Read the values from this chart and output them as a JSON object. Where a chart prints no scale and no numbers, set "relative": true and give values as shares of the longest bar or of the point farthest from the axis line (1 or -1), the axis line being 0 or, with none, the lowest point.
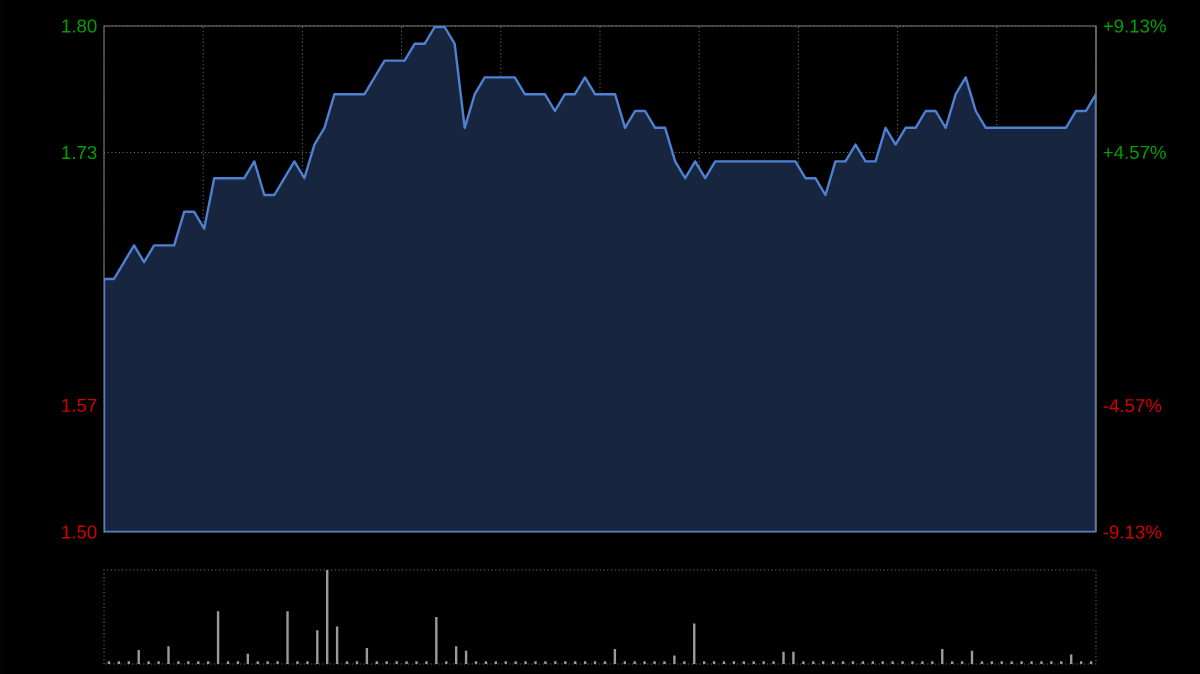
{
  "chart_data": [
    {
      "type": "area",
      "categories": [
        null,
        null,
        null,
        null,
        null,
        null,
        null,
        null,
        null,
        null,
        null,
        null,
        null,
        null,
        null,
        null,
        null,
        null,
        null,
        null,
        null,
        null,
        null,
        null,
        null,
        null,
        null,
        null,
        null,
        null,
        null,
        null,
        null,
        null,
        null,
        null,
        null,
        null,
        null,
        null,
        null,
        null,
        null,
        null,
        null,
        null,
        null,
        null,
        null,
        null,
        null,
        null,
        null,
        null,
        null,
        null,
        null,
        null,
        null,
        null,
        null,
        null,
        null,
        null,
        null,
        null,
        null,
        null,
        null,
        null,
        null,
        null,
        null,
        null,
        null,
        null,
        null,
        null,
        null,
        null,
        null,
        null,
        null,
        null,
        null,
        null,
        null,
        null,
        null,
        null,
        null,
        null,
        null,
        null,
        null,
        null,
        null,
        null,
        null,
        null
      ],
      "values": [
        1.65,
        1.65,
        1.66,
        1.67,
        1.66,
        1.67,
        1.67,
        1.67,
        1.69,
        1.69,
        1.68,
        1.71,
        1.71,
        1.71,
        1.71,
        1.72,
        1.7,
        1.7,
        1.71,
        1.72,
        1.71,
        1.73,
        1.74,
        1.76,
        1.76,
        1.76,
        1.76,
        1.77,
        1.78,
        1.78,
        1.78,
        1.79,
        1.79,
        1.8,
        1.8,
        1.79,
        1.74,
        1.76,
        1.77,
        1.77,
        1.77,
        1.77,
        1.76,
        1.76,
        1.76,
        1.75,
        1.76,
        1.76,
        1.77,
        1.76,
        1.76,
        1.76,
        1.74,
        1.75,
        1.75,
        1.74,
        1.74,
        1.72,
        1.71,
        1.72,
        1.71,
        1.72,
        1.72,
        1.72,
        1.72,
        1.72,
        1.72,
        1.72,
        1.72,
        1.72,
        1.71,
        1.71,
        1.7,
        1.72,
        1.72,
        1.73,
        1.72,
        1.72,
        1.74,
        1.73,
        1.74,
        1.74,
        1.75,
        1.75,
        1.74,
        1.76,
        1.77,
        1.75,
        1.74,
        1.74,
        1.74,
        1.74,
        1.74,
        1.74,
        1.74,
        1.74,
        1.74,
        1.75,
        1.75,
        1.76
      ],
      "color": "#17263e",
      "ylim": [
        1.4994,
        1.8006
      ],
      "yticks": [
        {
          "value": 1.4994,
          "label": "1.50"
        },
        {
          "value": 1.5747,
          "label": "1.57"
        },
        {
          "value": 1.65,
          "label": null
        },
        {
          "value": 1.7253,
          "label": "1.73"
        },
        {
          "value": 1.8006,
          "label": "1.80"
        }
      ],
      "y2lim": [
        -9.13,
        9.13
      ],
      "y2ticks": [
        {
          "value": -9.13,
          "label": "-9.13%"
        },
        {
          "value": -4.57,
          "label": "-4.57%"
        },
        {
          "value": 0,
          "label": null
        },
        {
          "value": 4.57,
          "label": "+4.57%"
        },
        {
          "value": 9.13,
          "label": "+9.13%"
        }
      ],
      "grid": true
    },
    {
      "type": "bar",
      "relative": true,
      "color": "#9a9a9a",
      "categories": [
        null,
        null,
        null,
        null,
        null,
        null,
        null,
        null,
        null,
        null,
        null,
        null,
        null,
        null,
        null,
        null,
        null,
        null,
        null,
        null,
        null,
        null,
        null,
        null,
        null,
        null,
        null,
        null,
        null,
        null,
        null,
        null,
        null,
        null,
        null,
        null,
        null,
        null,
        null,
        null,
        null,
        null,
        null,
        null,
        null,
        null,
        null,
        null,
        null,
        null,
        null,
        null,
        null,
        null,
        null,
        null,
        null,
        null,
        null,
        null,
        null,
        null,
        null,
        null,
        null,
        null,
        null,
        null,
        null,
        null,
        null,
        null,
        null,
        null,
        null,
        null,
        null,
        null,
        null,
        null,
        null,
        null,
        null,
        null,
        null,
        null,
        null,
        null,
        null,
        null,
        null,
        null,
        null,
        null,
        null,
        null,
        null,
        null,
        null,
        null
      ],
      "values": [
        0.03,
        0.03,
        0.03,
        0.15,
        0.03,
        0.03,
        0.19,
        0.03,
        0.03,
        0.03,
        0.03,
        0.56,
        0.03,
        0.03,
        0.11,
        0.03,
        0.03,
        0.03,
        0.56,
        0.03,
        0.03,
        0.36,
        1,
        0.4,
        0.03,
        0.03,
        0.17,
        0.03,
        0.03,
        0.03,
        0.03,
        0.03,
        0.03,
        0.5,
        0.03,
        0.19,
        0.14,
        0.03,
        0.03,
        0.03,
        0.03,
        0.03,
        0.03,
        0.03,
        0.03,
        0.03,
        0.03,
        0.03,
        0.03,
        0.03,
        0.03,
        0.16,
        0.03,
        0.03,
        0.03,
        0.03,
        0.03,
        0.09,
        0.03,
        0.43,
        0.03,
        0.03,
        0.03,
        0.03,
        0.03,
        0.03,
        0.03,
        0.03,
        0.13,
        0.13,
        0.03,
        0.03,
        0.03,
        0.03,
        0.03,
        0.03,
        0.03,
        0.03,
        0.03,
        0.03,
        0.03,
        0.03,
        0.03,
        0.03,
        0.16,
        0.03,
        0.03,
        0.14,
        0.03,
        0.03,
        0.03,
        0.03,
        0.03,
        0.03,
        0.03,
        0.03,
        0.03,
        0.1,
        0.03,
        0.03
      ]
    }
  ]
}
